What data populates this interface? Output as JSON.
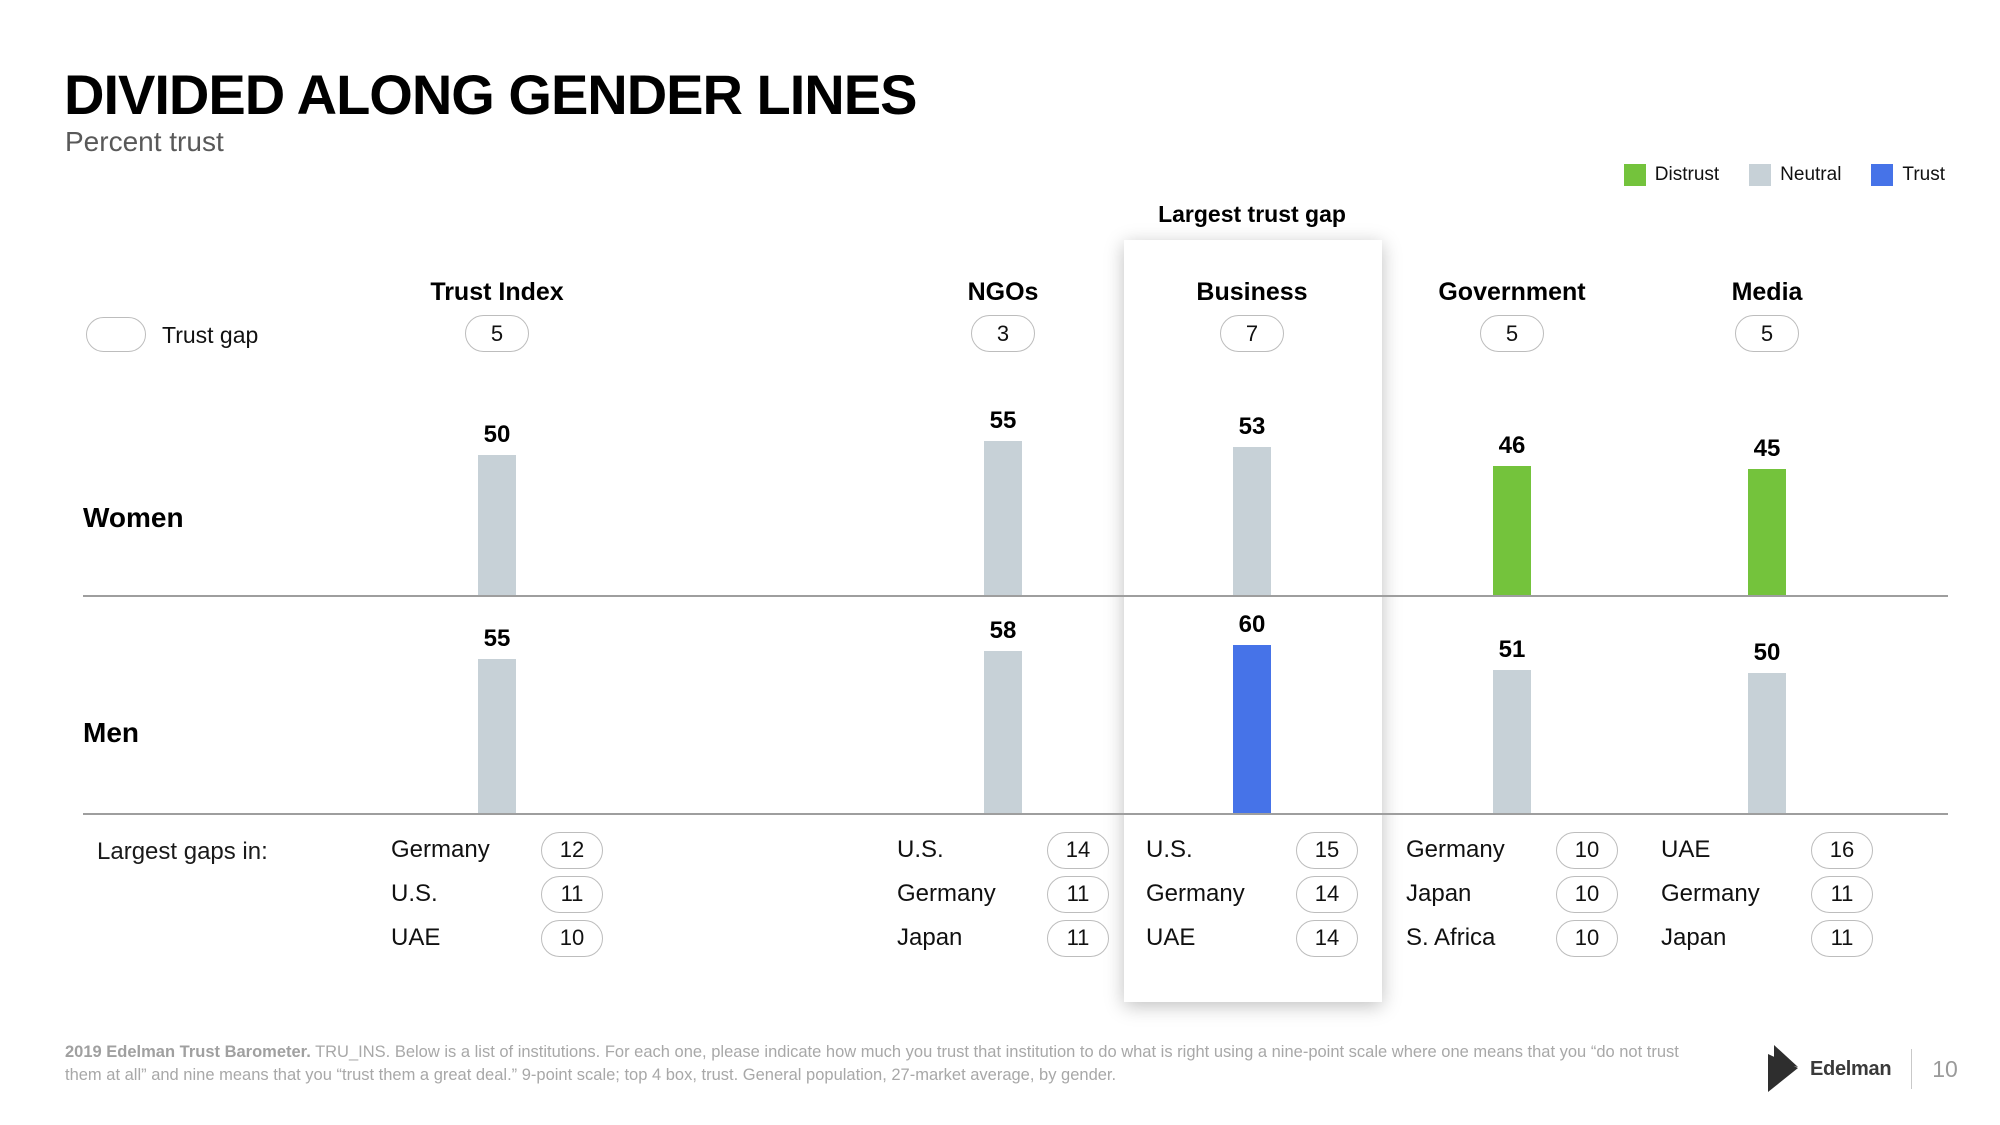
{
  "title": "DIVIDED ALONG GENDER LINES",
  "subtitle": "Percent trust",
  "legend": [
    {
      "label": "Distrust",
      "color": "#74C33C"
    },
    {
      "label": "Neutral",
      "color": "#C7D1D7"
    },
    {
      "label": "Trust",
      "color": "#4673E8"
    }
  ],
  "highlight_label": "Largest trust gap",
  "trust_gap_label": "Trust gap",
  "row_labels": {
    "women": "Women",
    "men": "Men"
  },
  "largest_gaps_label": "Largest gaps in:",
  "institutions": [
    {
      "name": "Trust Index",
      "trust_gap": "5",
      "highlighted": false,
      "women": {
        "value": 50,
        "category": "Neutral"
      },
      "men": {
        "value": 55,
        "category": "Neutral"
      },
      "largest_gaps": [
        {
          "market": "Germany",
          "gap": "12"
        },
        {
          "market": "U.S.",
          "gap": "11"
        },
        {
          "market": "UAE",
          "gap": "10"
        }
      ]
    },
    {
      "name": "NGOs",
      "trust_gap": "3",
      "highlighted": false,
      "women": {
        "value": 55,
        "category": "Neutral"
      },
      "men": {
        "value": 58,
        "category": "Neutral"
      },
      "largest_gaps": [
        {
          "market": "U.S.",
          "gap": "14"
        },
        {
          "market": "Germany",
          "gap": "11"
        },
        {
          "market": "Japan",
          "gap": "11"
        }
      ]
    },
    {
      "name": "Business",
      "trust_gap": "7",
      "highlighted": true,
      "women": {
        "value": 53,
        "category": "Neutral"
      },
      "men": {
        "value": 60,
        "category": "Trust"
      },
      "largest_gaps": [
        {
          "market": "U.S.",
          "gap": "15"
        },
        {
          "market": "Germany",
          "gap": "14"
        },
        {
          "market": "UAE",
          "gap": "14"
        }
      ]
    },
    {
      "name": "Government",
      "trust_gap": "5",
      "highlighted": false,
      "women": {
        "value": 46,
        "category": "Distrust"
      },
      "men": {
        "value": 51,
        "category": "Neutral"
      },
      "largest_gaps": [
        {
          "market": "Germany",
          "gap": "10"
        },
        {
          "market": "Japan",
          "gap": "10"
        },
        {
          "market": "S. Africa",
          "gap": "10"
        }
      ]
    },
    {
      "name": "Media",
      "trust_gap": "5",
      "highlighted": false,
      "women": {
        "value": 45,
        "category": "Distrust"
      },
      "men": {
        "value": 50,
        "category": "Neutral"
      },
      "largest_gaps": [
        {
          "market": "UAE",
          "gap": "16"
        },
        {
          "market": "Germany",
          "gap": "11"
        },
        {
          "market": "Japan",
          "gap": "11"
        }
      ]
    }
  ],
  "footer": {
    "bold": "2019 Edelman Trust Barometer.",
    "text": " TRU_INS. Below is a list of institutions. For each one, please indicate how much you trust that institution to do what is right using a nine-point scale where one means that you “do not trust them at all” and nine means that you “trust them a great deal.” 9-point scale; top 4 box, trust. General population, 27-market average, by gender."
  },
  "logo_text": "Edelman",
  "page_number": "10",
  "chart_data": {
    "type": "bar",
    "title": "DIVIDED ALONG GENDER LINES",
    "subtitle": "Percent trust",
    "categories": [
      "Trust Index",
      "NGOs",
      "Business",
      "Government",
      "Media"
    ],
    "series": [
      {
        "name": "Women",
        "values": [
          50,
          55,
          53,
          46,
          45
        ],
        "categories_of_bars": [
          "Neutral",
          "Neutral",
          "Neutral",
          "Distrust",
          "Distrust"
        ]
      },
      {
        "name": "Men",
        "values": [
          55,
          58,
          60,
          51,
          50
        ],
        "categories_of_bars": [
          "Neutral",
          "Neutral",
          "Trust",
          "Neutral",
          "Neutral"
        ]
      }
    ],
    "trust_gaps": [
      5,
      3,
      7,
      5,
      5
    ],
    "largest_gaps_by_institution": {
      "Trust Index": [
        [
          "Germany",
          12
        ],
        [
          "U.S.",
          11
        ],
        [
          "UAE",
          10
        ]
      ],
      "NGOs": [
        [
          "U.S.",
          14
        ],
        [
          "Germany",
          11
        ],
        [
          "Japan",
          11
        ]
      ],
      "Business": [
        [
          "U.S.",
          15
        ],
        [
          "Germany",
          14
        ],
        [
          "UAE",
          14
        ]
      ],
      "Government": [
        [
          "Germany",
          10
        ],
        [
          "Japan",
          10
        ],
        [
          "S. Africa",
          10
        ]
      ],
      "Media": [
        [
          "UAE",
          16
        ],
        [
          "Germany",
          11
        ],
        [
          "Japan",
          11
        ]
      ]
    },
    "legend": [
      {
        "label": "Distrust",
        "color": "#74C33C"
      },
      {
        "label": "Neutral",
        "color": "#C7D1D7"
      },
      {
        "label": "Trust",
        "color": "#4673E8"
      }
    ],
    "legend_position": "top-right",
    "grid": false,
    "ylim": [
      0,
      65
    ],
    "highlighted_category": "Business",
    "highlight_annotation": "Largest trust gap"
  }
}
